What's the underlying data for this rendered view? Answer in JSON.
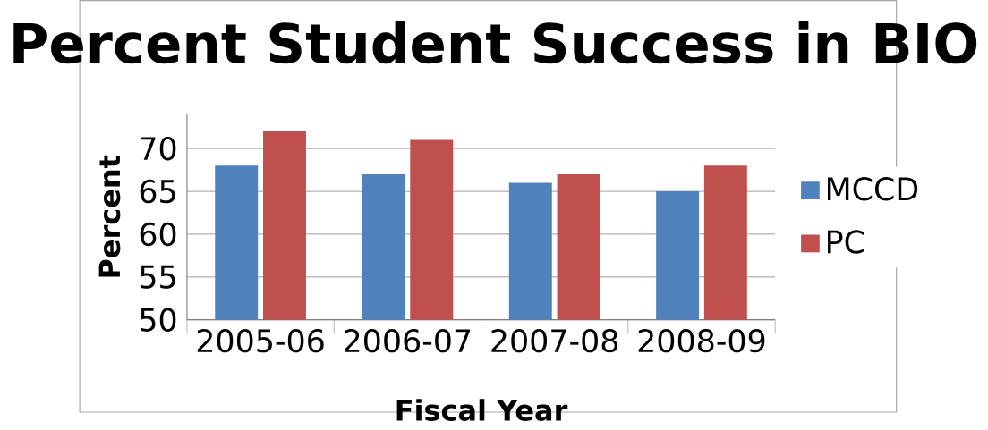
{
  "chart_data": {
    "type": "bar",
    "title": "Percent Student Success in BIO",
    "xlabel": "Fiscal Year",
    "ylabel": "Percent",
    "categories": [
      "2005-06",
      "2006-07",
      "2007-08",
      "2008-09"
    ],
    "series": [
      {
        "name": "MCCD",
        "color": "#4f81bd",
        "values": [
          68,
          67,
          66,
          65
        ]
      },
      {
        "name": "PC",
        "color": "#c0504d",
        "values": [
          72,
          71,
          67,
          68
        ]
      }
    ],
    "ylim": [
      50,
      74
    ],
    "yticks": [
      50,
      55,
      60,
      65,
      70
    ],
    "grid": "y",
    "legend": "right"
  }
}
